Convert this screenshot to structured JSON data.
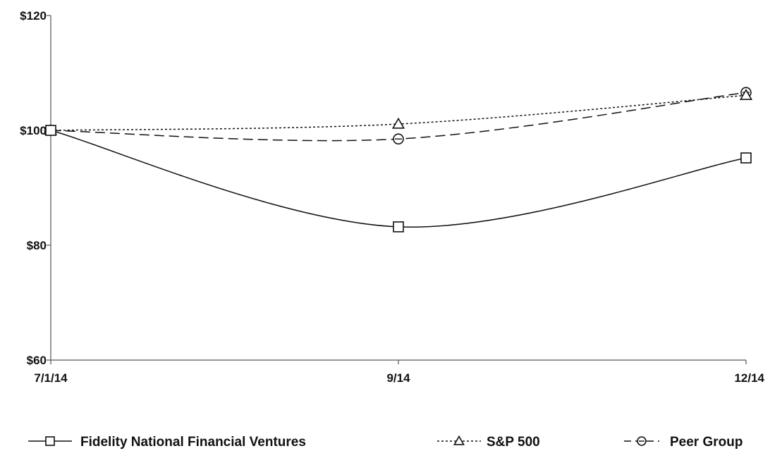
{
  "chart_data": {
    "type": "line",
    "categories": [
      "7/1/14",
      "9/14",
      "12/14"
    ],
    "ylim": [
      60,
      120
    ],
    "y_ticks": [
      60,
      80,
      100,
      120
    ],
    "y_tick_labels": [
      "$60",
      "$80",
      "$100",
      "$120"
    ],
    "grid": false,
    "legend_position": "bottom",
    "series": [
      {
        "name": "Fidelity National Financial Ventures",
        "values": [
          100,
          83.2,
          95.2
        ],
        "marker": "square",
        "dash": "solid"
      },
      {
        "name": "S&P 500",
        "values": [
          100,
          101.1,
          106.1
        ],
        "marker": "triangle",
        "dash": "dotted"
      },
      {
        "name": "Peer Group",
        "values": [
          100,
          98.5,
          106.6
        ],
        "marker": "circle",
        "dash": "dashed"
      }
    ]
  },
  "colors": {
    "line": "#111111",
    "background": "#ffffff"
  }
}
